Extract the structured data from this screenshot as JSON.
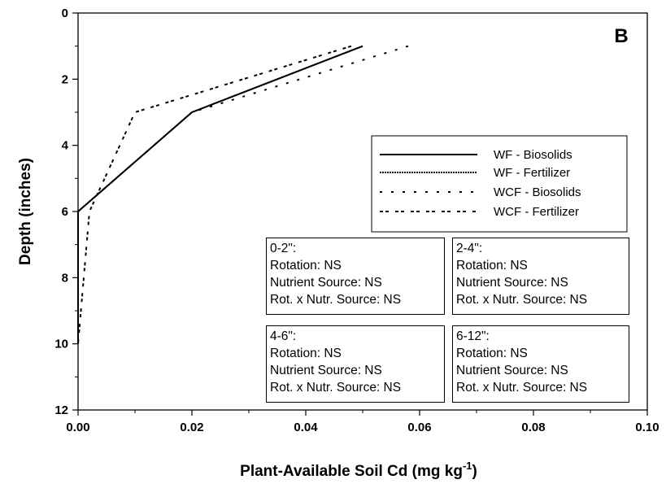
{
  "chart_data": {
    "type": "line",
    "panel_label": "B",
    "xlabel_main": "Plant-Available Soil Cd (mg kg",
    "xlabel_sup": "-1",
    "xlabel_end": ")",
    "ylabel": "Depth (inches)",
    "xlim": [
      0,
      0.1
    ],
    "ylim": [
      0,
      12
    ],
    "y_inverted": true,
    "x_ticks": [
      "0.00",
      "0.02",
      "0.04",
      "0.06",
      "0.08",
      "0.10"
    ],
    "y_ticks": [
      "0",
      "2",
      "4",
      "6",
      "8",
      "10",
      "12"
    ],
    "legend_position": "right",
    "series": [
      {
        "name": "WF - Biosolids",
        "style": "solid",
        "points": [
          [
            0.05,
            1
          ],
          [
            0.02,
            3
          ],
          [
            0.0,
            6
          ],
          [
            0.0,
            10
          ]
        ]
      },
      {
        "name": "WF - Fertilizer",
        "style": "dotted",
        "points": [
          [
            0.05,
            1
          ],
          [
            0.02,
            3
          ],
          [
            0.0,
            6
          ],
          [
            0.0,
            10
          ]
        ]
      },
      {
        "name": "WCF - Biosolids",
        "style": "dashed",
        "points": [
          [
            0.058,
            1
          ],
          [
            0.02,
            3
          ],
          [
            0.0,
            6
          ],
          [
            0.0,
            10
          ]
        ]
      },
      {
        "name": "WCF - Fertilizer",
        "style": "dash-dot",
        "points": [
          [
            0.048,
            1
          ],
          [
            0.01,
            3
          ],
          [
            0.002,
            6
          ],
          [
            0.0,
            10
          ]
        ]
      }
    ]
  },
  "stats": [
    {
      "header": "0-2\":",
      "lines": [
        "Rotation: NS",
        "Nutrient Source: NS",
        "Rot. x Nutr. Source: NS"
      ]
    },
    {
      "header": "2-4\":",
      "lines": [
        "Rotation: NS",
        "Nutrient Source: NS",
        "Rot. x Nutr. Source: NS"
      ]
    },
    {
      "header": "4-6\":",
      "lines": [
        "Rotation: NS",
        "Nutrient Source: NS",
        "Rot. x Nutr. Source: NS"
      ]
    },
    {
      "header": "6-12\":",
      "lines": [
        "Rotation: NS",
        "Nutrient Source: NS",
        "Rot. x Nutr. Source: NS"
      ]
    }
  ]
}
